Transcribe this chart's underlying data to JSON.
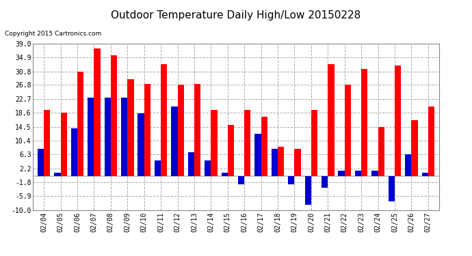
{
  "title": "Outdoor Temperature Daily High/Low 20150228",
  "copyright": "Copyright 2015 Cartronics.com",
  "dates": [
    "02/04",
    "02/05",
    "02/06",
    "02/07",
    "02/08",
    "02/09",
    "02/10",
    "02/11",
    "02/12",
    "02/13",
    "02/14",
    "02/15",
    "02/16",
    "02/17",
    "02/18",
    "02/19",
    "02/20",
    "02/21",
    "02/22",
    "02/23",
    "02/24",
    "02/25",
    "02/26",
    "02/27"
  ],
  "highs": [
    19.5,
    18.6,
    30.8,
    37.5,
    35.5,
    28.5,
    27.0,
    33.0,
    26.8,
    27.0,
    19.5,
    15.0,
    19.5,
    17.5,
    8.5,
    8.0,
    19.5,
    33.0,
    26.8,
    31.5,
    14.5,
    32.5,
    16.5,
    20.5
  ],
  "lows": [
    8.0,
    1.0,
    14.0,
    23.0,
    23.0,
    23.0,
    18.5,
    4.5,
    20.5,
    7.0,
    4.5,
    1.0,
    -2.5,
    12.5,
    8.0,
    -2.5,
    -8.5,
    -3.5,
    1.5,
    1.5,
    1.5,
    -7.5,
    6.3,
    1.0
  ],
  "ylim": [
    -10.0,
    39.0
  ],
  "yticks": [
    -10.0,
    -5.9,
    -1.8,
    2.2,
    6.3,
    10.4,
    14.5,
    18.6,
    22.7,
    26.8,
    30.8,
    34.9,
    39.0
  ],
  "bar_width": 0.38,
  "high_color": "#FF0000",
  "low_color": "#0000CC",
  "bg_color": "#FFFFFF",
  "plot_bg_color": "#FFFFFF",
  "grid_color": "#AAAAAA",
  "legend_low_bg": "#0000CC",
  "legend_high_bg": "#FF0000"
}
